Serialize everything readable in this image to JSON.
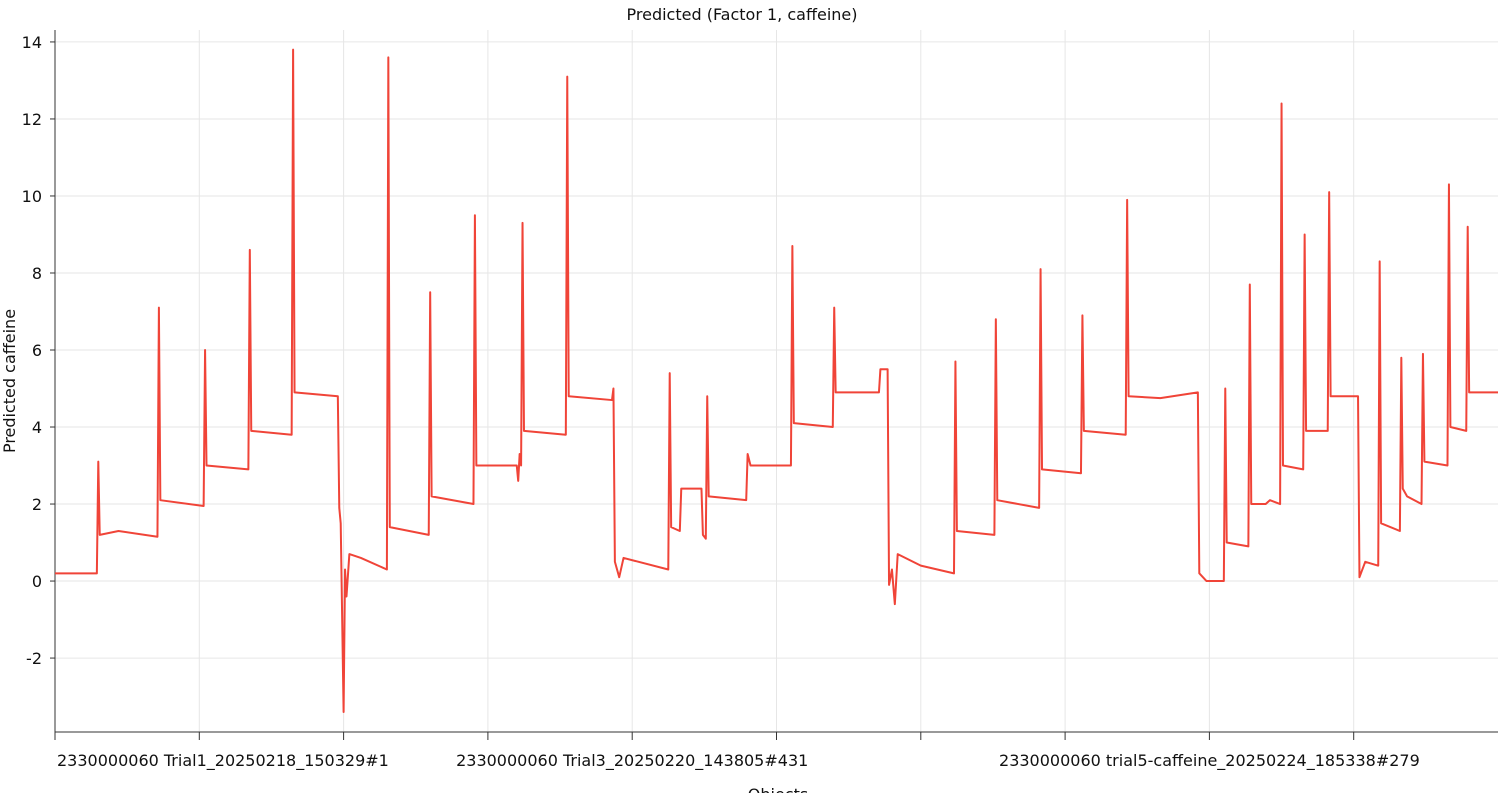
{
  "chart_data": {
    "type": "line",
    "title": "Predicted (Factor 1, caffeine)",
    "x_label": "Objects",
    "y_label": "Predicted caffeine",
    "xlim": [
      0,
      1000
    ],
    "ylim": [
      -3.92,
      14.31
    ],
    "xticks": [
      {
        "value": 0,
        "label": "2330000060 Trial1_20250218_150329#1"
      },
      {
        "value": 100,
        "label": null
      },
      {
        "value": 200,
        "label": null
      },
      {
        "value": 300,
        "label": null
      },
      {
        "value": 400,
        "label": "2330000060 Trial3_20250220_143805#431"
      },
      {
        "value": 500,
        "label": null
      },
      {
        "value": 600,
        "label": null
      },
      {
        "value": 700,
        "label": null
      },
      {
        "value": 800,
        "label": "2330000060 trial5-caffeine_20250224_185338#279"
      },
      {
        "value": 900,
        "label": null
      }
    ],
    "yticks": [
      -2,
      0,
      2,
      4,
      6,
      8,
      10,
      12,
      14
    ],
    "grid": true,
    "x": [
      0,
      29,
      30,
      31,
      44,
      71,
      72,
      73,
      103,
      104,
      105,
      134,
      135,
      136,
      164,
      165,
      166,
      196,
      197,
      198,
      200,
      201,
      202,
      204,
      212,
      230,
      231,
      232,
      259,
      260,
      261,
      290,
      291,
      292,
      320,
      321,
      322,
      323,
      324,
      325,
      354,
      355,
      356,
      386,
      387,
      388,
      391,
      394,
      425,
      426,
      427,
      433,
      434,
      448,
      449,
      451,
      452,
      453,
      479,
      480,
      482,
      510,
      511,
      512,
      539,
      540,
      541,
      571,
      572,
      577,
      578,
      580,
      582,
      584,
      600,
      623,
      624,
      625,
      651,
      652,
      653,
      682,
      683,
      684,
      711,
      712,
      713,
      742,
      743,
      744,
      766,
      792,
      793,
      798,
      810,
      811,
      812,
      827,
      828,
      829,
      839,
      842,
      849,
      850,
      851,
      865,
      866,
      867,
      882,
      883,
      884,
      903,
      904,
      908,
      917,
      918,
      919,
      932,
      933,
      934,
      937,
      947,
      948,
      949,
      965,
      966,
      967,
      978,
      979,
      980,
      1000
    ],
    "series": [
      {
        "color": "#f04438",
        "values": [
          0.2,
          0.2,
          3.1,
          1.2,
          1.3,
          1.15,
          7.1,
          2.1,
          1.95,
          6.0,
          3.0,
          2.9,
          8.6,
          3.9,
          3.8,
          13.8,
          4.9,
          4.8,
          1.9,
          1.5,
          -3.4,
          0.3,
          -0.4,
          0.7,
          0.6,
          0.3,
          13.6,
          1.4,
          1.2,
          7.5,
          2.2,
          2.0,
          9.5,
          3.0,
          3.0,
          2.6,
          3.3,
          3.0,
          9.3,
          3.9,
          3.8,
          13.1,
          4.8,
          4.7,
          5.0,
          0.5,
          0.1,
          0.6,
          0.3,
          5.4,
          1.4,
          1.3,
          2.4,
          2.4,
          1.2,
          1.1,
          4.8,
          2.2,
          2.1,
          3.3,
          3.0,
          3.0,
          8.7,
          4.1,
          4.0,
          7.1,
          4.9,
          4.9,
          5.5,
          5.5,
          -0.1,
          0.3,
          -0.6,
          0.7,
          0.4,
          0.2,
          5.7,
          1.3,
          1.2,
          6.8,
          2.1,
          1.9,
          8.1,
          2.9,
          2.8,
          6.9,
          3.9,
          3.8,
          9.9,
          4.8,
          4.75,
          4.9,
          0.2,
          0.0,
          0.0,
          5.0,
          1.0,
          0.9,
          7.7,
          2.0,
          2.0,
          2.1,
          2.0,
          12.4,
          3.0,
          2.9,
          9.0,
          3.9,
          3.9,
          10.1,
          4.8,
          4.8,
          0.1,
          0.5,
          0.4,
          8.3,
          1.5,
          1.3,
          5.8,
          2.4,
          2.2,
          2.0,
          5.9,
          3.1,
          3.0,
          10.3,
          4.0,
          3.9,
          9.2,
          4.9,
          4.9
        ]
      }
    ]
  }
}
